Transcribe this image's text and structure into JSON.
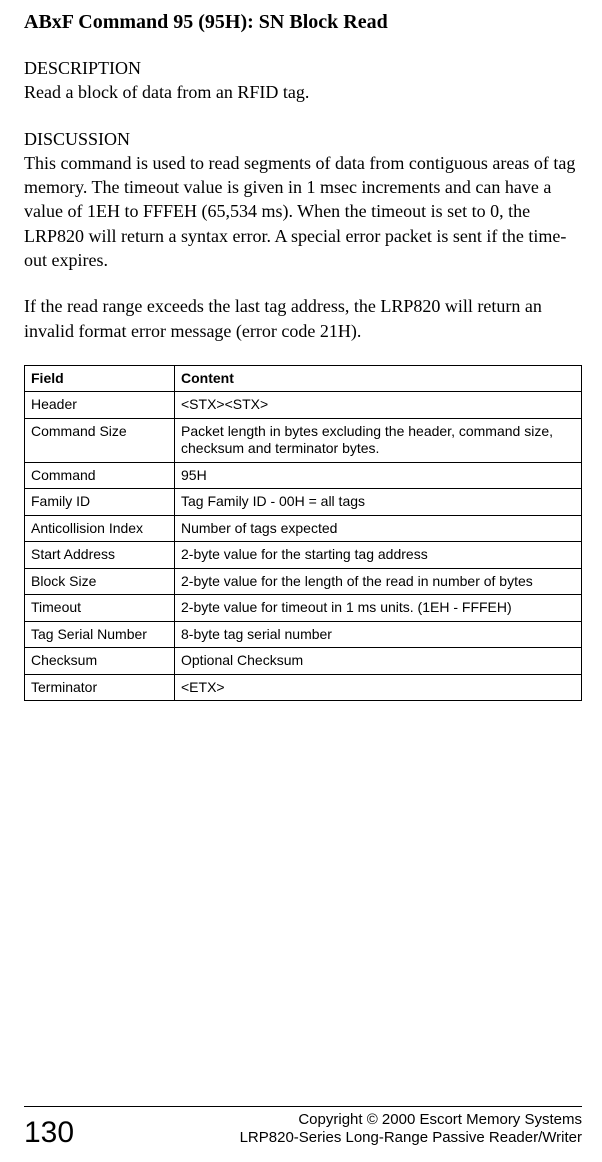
{
  "title": "ABxF Command 95 (95H): SN Block Read",
  "description": {
    "heading": "DESCRIPTION",
    "text": "Read a block of data from an RFID tag."
  },
  "discussion": {
    "heading": "DISCUSSION",
    "para1": "This command is used to read segments of data from contiguous areas of tag memory. The timeout value is given in 1 msec increments and can have a value of 1EH to FFFEH (65,534 ms). When the timeout is set to 0, the LRP820 will return a syntax error. A special error packet is sent if the time-out expires.",
    "para2": "If the read range exceeds the last tag address, the LRP820 will return an invalid format error message (error code 21H)."
  },
  "table": {
    "columns": [
      "Field",
      "Content"
    ],
    "rows": [
      [
        "Header",
        "<STX><STX>"
      ],
      [
        "Command Size",
        "Packet length in bytes excluding the header, command size, checksum and terminator bytes."
      ],
      [
        "Command",
        "95H"
      ],
      [
        "Family ID",
        "Tag Family ID - 00H = all tags"
      ],
      [
        "Anticollision Index",
        "Number of tags expected"
      ],
      [
        "Start Address",
        "2-byte value for the starting tag address"
      ],
      [
        "Block Size",
        "2-byte value for the length of the read in number of bytes"
      ],
      [
        "Timeout",
        "2-byte value for timeout in 1 ms units. (1EH - FFFEH)"
      ],
      [
        "Tag Serial Number",
        "8-byte tag serial number"
      ],
      [
        "Checksum",
        "Optional Checksum"
      ],
      [
        "Terminator",
        "<ETX>"
      ]
    ]
  },
  "footer": {
    "page_number": "130",
    "copyright": "Copyright © 2000 Escort Memory Systems",
    "product": "LRP820-Series Long-Range Passive Reader/Writer"
  }
}
